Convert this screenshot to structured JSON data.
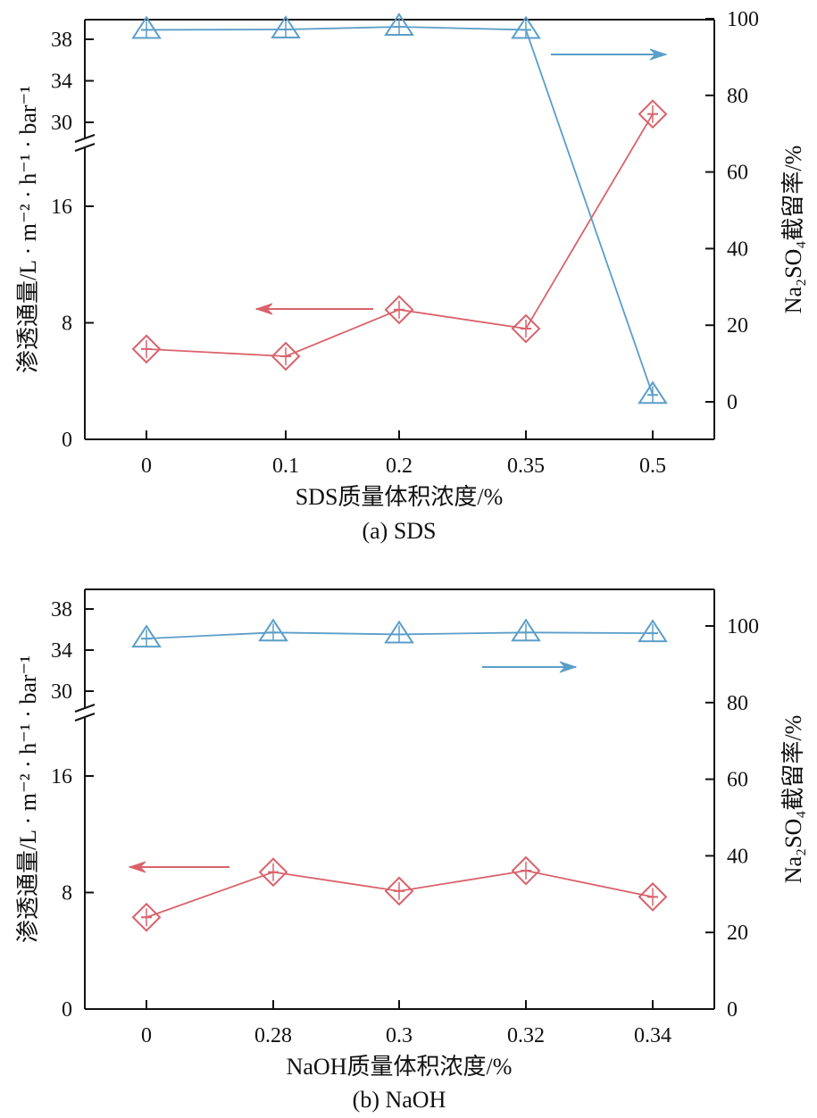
{
  "colors": {
    "flux": "#d9626a",
    "rejection": "#5b9ec9",
    "axis": "#111111"
  },
  "chart_data": [
    {
      "type": "line",
      "id": "a",
      "caption": "(a) SDS",
      "xlabel": "SDS质量体积浓度/%",
      "ylabel_left": "渗透通量/L · m⁻² · h⁻¹ · bar⁻¹",
      "ylabel_right": "Na₂SO₄截留率/%",
      "categories": [
        "0",
        "0.1",
        "0.2",
        "0.35",
        "0.5"
      ],
      "left_axis": {
        "broken": true,
        "lower_ticks": [
          0,
          8,
          16
        ],
        "upper_ticks": [
          30,
          34,
          38
        ]
      },
      "right_axis": {
        "ylim": [
          -10,
          100
        ],
        "ticks": [
          0,
          20,
          40,
          60,
          80,
          100
        ]
      },
      "series": [
        {
          "name": "渗透通量",
          "axis": "left",
          "marker": "diamond",
          "values": [
            6.2,
            5.7,
            8.9,
            7.6,
            30.8
          ]
        },
        {
          "name": "Na₂SO₄截留率",
          "axis": "right",
          "marker": "triangle",
          "values": [
            97.1,
            97.2,
            97.9,
            97.1,
            1.8
          ]
        }
      ],
      "annotations": [
        {
          "type": "arrow",
          "direction": "left",
          "series": "渗透通量"
        },
        {
          "type": "arrow",
          "direction": "right",
          "series": "Na₂SO₄截留率"
        }
      ]
    },
    {
      "type": "line",
      "id": "b",
      "caption": "(b) NaOH",
      "xlabel": "NaOH质量体积浓度/%",
      "ylabel_left": "渗透通量/L · m⁻² · h⁻¹ · bar⁻¹",
      "ylabel_right": "Na₂SO₄截留率/%",
      "categories": [
        "0",
        "0.28",
        "0.3",
        "0.32",
        "0.34"
      ],
      "left_axis": {
        "broken": true,
        "lower_ticks": [
          0,
          8,
          16
        ],
        "upper_ticks": [
          30,
          34,
          38
        ]
      },
      "right_axis": {
        "ylim": [
          0,
          110
        ],
        "ticks": [
          0,
          20,
          40,
          60,
          80,
          100
        ]
      },
      "series": [
        {
          "name": "渗透通量",
          "axis": "left",
          "marker": "diamond",
          "values": [
            6.3,
            9.4,
            8.1,
            9.5,
            7.7
          ]
        },
        {
          "name": "Na₂SO₄截留率",
          "axis": "right",
          "marker": "triangle",
          "values": [
            96.7,
            98.3,
            97.8,
            98.3,
            98.1
          ]
        }
      ],
      "annotations": [
        {
          "type": "arrow",
          "direction": "left",
          "series": "渗透通量"
        },
        {
          "type": "arrow",
          "direction": "right",
          "series": "Na₂SO₄截留率"
        }
      ]
    }
  ]
}
